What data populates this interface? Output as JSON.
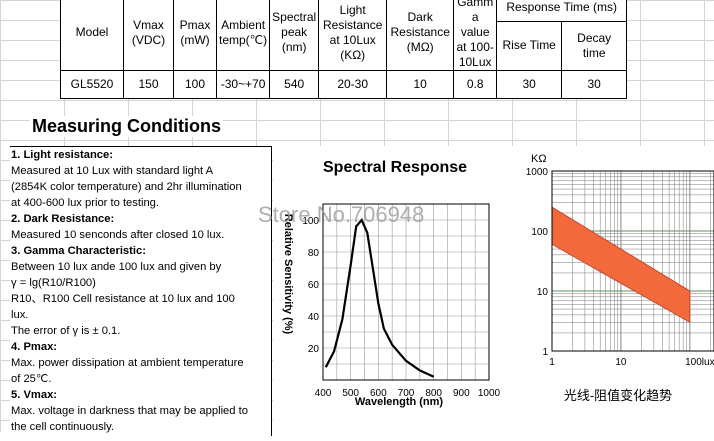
{
  "table": {
    "headers": {
      "model": "Model",
      "vmax": [
        "Vmax",
        "(VDC)"
      ],
      "pmax": [
        "Pmax",
        "(mW)"
      ],
      "ambient": [
        "Ambient",
        "temp(℃)"
      ],
      "spectral": [
        "Spectral",
        "peak",
        "(nm)"
      ],
      "light": [
        "Light",
        "Resistance",
        "at 10Lux",
        "(KΩ)"
      ],
      "dark": [
        "Dark",
        "Resistance",
        "(MΩ)"
      ],
      "gamma": [
        "Gamm",
        "a value",
        "at 100-",
        "10Lux"
      ],
      "response": "Response Time (ms)",
      "rise": "Rise Time",
      "decay": [
        "Decay",
        "time"
      ]
    },
    "row": [
      "GL5520",
      "150",
      "100",
      "-30~+70",
      "540",
      "20-30",
      "10",
      "0.8",
      "30",
      "30"
    ]
  },
  "section_title": "Measuring Conditions",
  "conditions": [
    {
      "bold": true,
      "text": "1. Light resistance:"
    },
    {
      "bold": false,
      "text": "Measured at 10 Lux with standard light A"
    },
    {
      "bold": false,
      "text": "(2854K color temperature) and 2hr illumination"
    },
    {
      "bold": false,
      "text": "at 400-600 lux prior to testing."
    },
    {
      "bold": true,
      "text": "2. Dark Resistance:"
    },
    {
      "bold": false,
      "text": "Measured 10 senconds after closed 10 lux."
    },
    {
      "bold": true,
      "text": "3. Gamma Characteristic:"
    },
    {
      "bold": false,
      "text": "Between 10 lux ande 100 lux and given by"
    },
    {
      "bold": false,
      "text": "γ = lg(R10/R100)"
    },
    {
      "bold": false,
      "text": "R10、R100 Cell resistance at 10 lux and 100"
    },
    {
      "bold": false,
      "text": "lux."
    },
    {
      "bold": false,
      "text": "The error of γ is ± 0.1."
    },
    {
      "bold": true,
      "text": "4. Pmax:"
    },
    {
      "bold": false,
      "text": "Max. power dissipation at ambient temperature"
    },
    {
      "bold": false,
      "text": "of 25℃."
    },
    {
      "bold": true,
      "text": "5. Vmax:"
    },
    {
      "bold": false,
      "text": "Max. voltage in darkness that may be applied to"
    },
    {
      "bold": false,
      "text": "the cell continuously."
    }
  ],
  "watermark": "Store No.706948",
  "chart_data": [
    {
      "type": "line",
      "title": "Spectral Response",
      "xlabel": "Wavelength (nm)",
      "ylabel": "Relative Sensitivity (%)",
      "xlim": [
        400,
        1000
      ],
      "ylim": [
        0,
        100
      ],
      "x_ticks": [
        "400",
        "500",
        "600",
        "700",
        "800",
        "900",
        "1000"
      ],
      "y_ticks": [
        "20",
        "40",
        "60",
        "80",
        "100"
      ],
      "grid": true,
      "series": [
        {
          "x": [
            410,
            440,
            470,
            500,
            520,
            540,
            560,
            580,
            600,
            620,
            650,
            700,
            750,
            800
          ],
          "y": [
            8,
            18,
            38,
            72,
            96,
            100,
            92,
            70,
            48,
            32,
            22,
            12,
            6,
            2
          ]
        }
      ]
    },
    {
      "type": "area",
      "title": "光线-阻值变化趋势",
      "ylabel": "KΩ",
      "xlabel": "",
      "x_scale": "log",
      "y_scale": "log",
      "xlim": [
        1,
        100
      ],
      "ylim": [
        1,
        1000
      ],
      "x_ticks": [
        "1",
        "10",
        "100lux"
      ],
      "y_ticks": [
        "1000",
        "100",
        "10",
        "1"
      ],
      "band": {
        "x": [
          1,
          100
        ],
        "upper": [
          250,
          10
        ],
        "lower": [
          60,
          3
        ]
      },
      "band_color": "#f26a3c",
      "grid": true
    }
  ]
}
